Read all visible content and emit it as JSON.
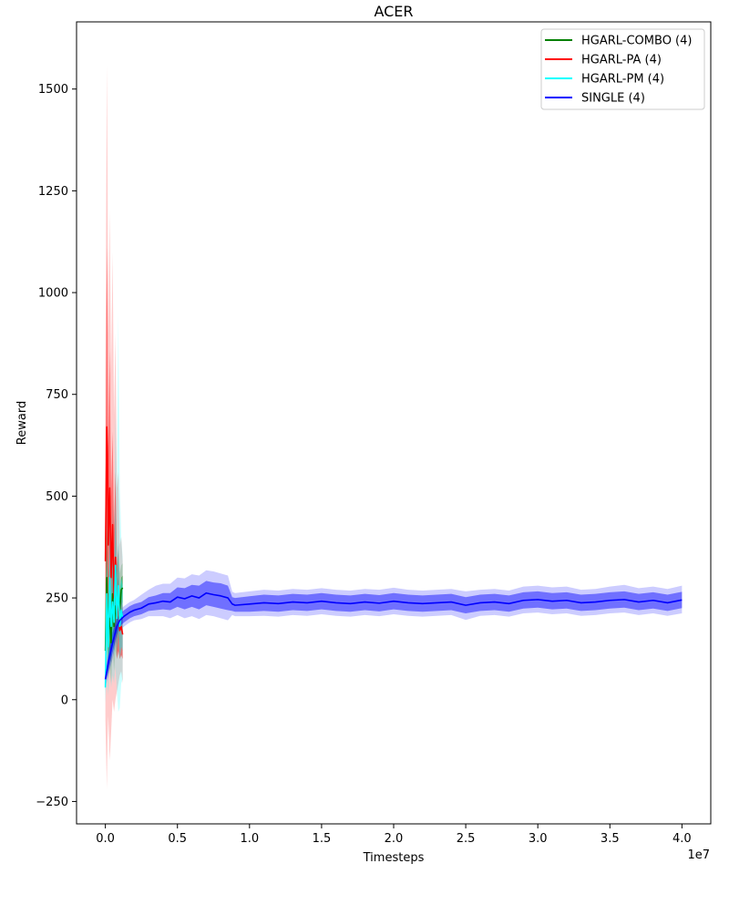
{
  "chart_data": {
    "type": "line",
    "title": "ACER",
    "xlabel": "Timesteps",
    "ylabel": "Reward",
    "x_offset_label": "1e7",
    "x_scale": 10000000,
    "xlim": [
      -0.2,
      4.2
    ],
    "ylim": [
      -305,
      1665
    ],
    "x_ticks": [
      0.0,
      0.5,
      1.0,
      1.5,
      2.0,
      2.5,
      3.0,
      3.5,
      4.0
    ],
    "x_tick_labels": [
      "0.0",
      "0.5",
      "1.0",
      "1.5",
      "2.0",
      "2.5",
      "3.0",
      "3.5",
      "4.0"
    ],
    "y_ticks": [
      -250,
      0,
      250,
      500,
      750,
      1000,
      1250,
      1500
    ],
    "y_tick_labels": [
      "−250",
      "0",
      "250",
      "500",
      "750",
      "1000",
      "1250",
      "1500"
    ],
    "grid": false,
    "legend_position": "top-right",
    "series": [
      {
        "name": "HGARL-COMBO (4)",
        "color": "#008000",
        "x": [
          0.0,
          0.01,
          0.02,
          0.03,
          0.04,
          0.05,
          0.06,
          0.07,
          0.08,
          0.09,
          0.1,
          0.11,
          0.12
        ],
        "y": [
          120,
          300,
          160,
          200,
          140,
          260,
          180,
          230,
          200,
          250,
          220,
          270,
          275
        ],
        "inner_band": [
          [
            60,
            190
          ],
          [
            180,
            420
          ],
          [
            100,
            230
          ],
          [
            130,
            270
          ],
          [
            90,
            200
          ],
          [
            190,
            330
          ],
          [
            120,
            240
          ],
          [
            170,
            290
          ],
          [
            150,
            250
          ],
          [
            200,
            300
          ],
          [
            180,
            260
          ],
          [
            230,
            300
          ],
          [
            240,
            305
          ]
        ],
        "outer_band": [
          [
            30,
            260
          ],
          [
            120,
            520
          ],
          [
            50,
            300
          ],
          [
            80,
            340
          ],
          [
            40,
            270
          ],
          [
            130,
            400
          ],
          [
            70,
            300
          ],
          [
            120,
            350
          ],
          [
            100,
            320
          ],
          [
            150,
            360
          ],
          [
            140,
            310
          ],
          [
            200,
            330
          ],
          [
            210,
            335
          ]
        ]
      },
      {
        "name": "HGARL-PA (4)",
        "color": "#ff0000",
        "x": [
          0.0,
          0.01,
          0.015,
          0.02,
          0.03,
          0.04,
          0.05,
          0.06,
          0.07,
          0.08,
          0.09,
          0.1,
          0.11,
          0.12
        ],
        "y": [
          340,
          670,
          600,
          380,
          520,
          300,
          430,
          250,
          350,
          200,
          240,
          170,
          180,
          160
        ],
        "inner_band": [
          [
            200,
            500
          ],
          [
            350,
            1115
          ],
          [
            300,
            950
          ],
          [
            180,
            620
          ],
          [
            250,
            860
          ],
          [
            130,
            500
          ],
          [
            220,
            660
          ],
          [
            120,
            420
          ],
          [
            170,
            560
          ],
          [
            100,
            330
          ],
          [
            120,
            380
          ],
          [
            100,
            250
          ],
          [
            110,
            260
          ],
          [
            100,
            230
          ]
        ],
        "outer_band": [
          [
            -50,
            800
          ],
          [
            -220,
            1560
          ],
          [
            -100,
            1300
          ],
          [
            -40,
            900
          ],
          [
            -150,
            1200
          ],
          [
            -80,
            800
          ],
          [
            0,
            1100
          ],
          [
            -30,
            700
          ],
          [
            0,
            900
          ],
          [
            20,
            520
          ],
          [
            40,
            560
          ],
          [
            60,
            380
          ],
          [
            70,
            400
          ],
          [
            40,
            340
          ]
        ]
      },
      {
        "name": "HGARL-PM (4)",
        "color": "#00ffff",
        "x": [
          0.0,
          0.01,
          0.02,
          0.03,
          0.04,
          0.05,
          0.06,
          0.07,
          0.08,
          0.09,
          0.1,
          0.11,
          0.12
        ],
        "y": [
          30,
          260,
          130,
          300,
          180,
          240,
          190,
          330,
          200,
          280,
          180,
          220,
          200
        ],
        "inner_band": [
          [
            10,
            80
          ],
          [
            150,
            360
          ],
          [
            70,
            200
          ],
          [
            180,
            430
          ],
          [
            100,
            260
          ],
          [
            150,
            350
          ],
          [
            110,
            280
          ],
          [
            200,
            480
          ],
          [
            120,
            300
          ],
          [
            170,
            390
          ],
          [
            100,
            260
          ],
          [
            130,
            300
          ],
          [
            120,
            280
          ]
        ],
        "outer_band": [
          [
            -10,
            150
          ],
          [
            60,
            480
          ],
          [
            10,
            300
          ],
          [
            90,
            560
          ],
          [
            30,
            360
          ],
          [
            60,
            500
          ],
          [
            40,
            400
          ],
          [
            80,
            700
          ],
          [
            20,
            520
          ],
          [
            -30,
            950
          ],
          [
            -20,
            520
          ],
          [
            40,
            400
          ],
          [
            50,
            350
          ]
        ]
      },
      {
        "name": "SINGLE (4)",
        "color": "#0000ff",
        "x": [
          0.0,
          0.02,
          0.05,
          0.08,
          0.1,
          0.13,
          0.17,
          0.2,
          0.25,
          0.3,
          0.35,
          0.4,
          0.45,
          0.5,
          0.55,
          0.6,
          0.65,
          0.7,
          0.75,
          0.8,
          0.85,
          0.88,
          0.9,
          1.0,
          1.1,
          1.2,
          1.3,
          1.4,
          1.5,
          1.6,
          1.7,
          1.8,
          1.9,
          2.0,
          2.1,
          2.2,
          2.3,
          2.4,
          2.5,
          2.6,
          2.7,
          2.8,
          2.9,
          3.0,
          3.1,
          3.2,
          3.3,
          3.4,
          3.5,
          3.6,
          3.7,
          3.8,
          3.9,
          4.0
        ],
        "y": [
          50,
          90,
          140,
          180,
          195,
          205,
          215,
          220,
          225,
          235,
          238,
          242,
          240,
          252,
          248,
          255,
          250,
          262,
          258,
          255,
          250,
          235,
          232,
          235,
          238,
          236,
          240,
          238,
          242,
          238,
          236,
          240,
          237,
          242,
          238,
          236,
          238,
          240,
          232,
          238,
          240,
          236,
          244,
          246,
          242,
          244,
          238,
          240,
          244,
          246,
          240,
          244,
          238,
          245
        ],
        "inner_band": [
          [
            40,
            60
          ],
          [
            70,
            110
          ],
          [
            115,
            165
          ],
          [
            160,
            200
          ],
          [
            180,
            210
          ],
          [
            190,
            220
          ],
          [
            200,
            230
          ],
          [
            205,
            235
          ],
          [
            210,
            240
          ],
          [
            218,
            252
          ],
          [
            220,
            256
          ],
          [
            222,
            262
          ],
          [
            220,
            262
          ],
          [
            228,
            276
          ],
          [
            222,
            274
          ],
          [
            228,
            282
          ],
          [
            222,
            280
          ],
          [
            232,
            292
          ],
          [
            228,
            288
          ],
          [
            224,
            286
          ],
          [
            220,
            280
          ],
          [
            218,
            252
          ],
          [
            216,
            250
          ],
          [
            216,
            254
          ],
          [
            218,
            258
          ],
          [
            216,
            256
          ],
          [
            220,
            260
          ],
          [
            218,
            258
          ],
          [
            222,
            262
          ],
          [
            218,
            258
          ],
          [
            216,
            256
          ],
          [
            220,
            260
          ],
          [
            217,
            257
          ],
          [
            222,
            262
          ],
          [
            218,
            258
          ],
          [
            216,
            256
          ],
          [
            218,
            258
          ],
          [
            220,
            260
          ],
          [
            212,
            252
          ],
          [
            218,
            258
          ],
          [
            220,
            260
          ],
          [
            216,
            256
          ],
          [
            224,
            264
          ],
          [
            226,
            266
          ],
          [
            222,
            262
          ],
          [
            224,
            264
          ],
          [
            218,
            258
          ],
          [
            220,
            260
          ],
          [
            224,
            264
          ],
          [
            226,
            266
          ],
          [
            220,
            260
          ],
          [
            224,
            264
          ],
          [
            218,
            258
          ],
          [
            225,
            265
          ]
        ],
        "outer_band": [
          [
            30,
            70
          ],
          [
            60,
            120
          ],
          [
            100,
            175
          ],
          [
            150,
            210
          ],
          [
            170,
            220
          ],
          [
            180,
            230
          ],
          [
            190,
            240
          ],
          [
            195,
            245
          ],
          [
            198,
            258
          ],
          [
            205,
            270
          ],
          [
            205,
            280
          ],
          [
            205,
            285
          ],
          [
            200,
            285
          ],
          [
            208,
            300
          ],
          [
            200,
            298
          ],
          [
            205,
            308
          ],
          [
            198,
            305
          ],
          [
            208,
            318
          ],
          [
            205,
            315
          ],
          [
            200,
            310
          ],
          [
            195,
            305
          ],
          [
            208,
            265
          ],
          [
            205,
            262
          ],
          [
            205,
            266
          ],
          [
            206,
            270
          ],
          [
            204,
            268
          ],
          [
            208,
            272
          ],
          [
            206,
            270
          ],
          [
            210,
            274
          ],
          [
            206,
            270
          ],
          [
            204,
            268
          ],
          [
            208,
            272
          ],
          [
            205,
            270
          ],
          [
            210,
            275
          ],
          [
            206,
            270
          ],
          [
            204,
            268
          ],
          [
            206,
            270
          ],
          [
            208,
            272
          ],
          [
            196,
            266
          ],
          [
            206,
            270
          ],
          [
            208,
            272
          ],
          [
            204,
            268
          ],
          [
            212,
            278
          ],
          [
            214,
            280
          ],
          [
            210,
            276
          ],
          [
            212,
            278
          ],
          [
            206,
            270
          ],
          [
            208,
            272
          ],
          [
            212,
            278
          ],
          [
            214,
            282
          ],
          [
            208,
            274
          ],
          [
            212,
            278
          ],
          [
            206,
            272
          ],
          [
            212,
            280
          ]
        ]
      }
    ]
  }
}
